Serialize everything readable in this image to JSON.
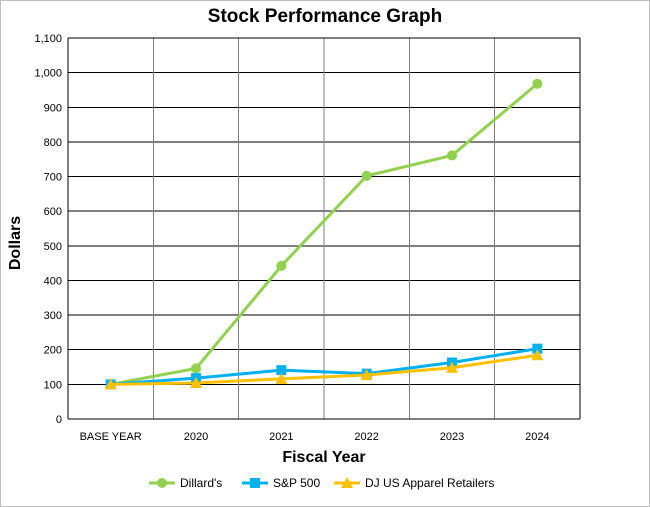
{
  "chart_data": {
    "type": "line",
    "title": "Stock Performance Graph",
    "xlabel": "Fiscal Year",
    "ylabel": "Dollars",
    "categories": [
      "BASE YEAR",
      "2020",
      "2021",
      "2022",
      "2023",
      "2024"
    ],
    "ylim": [
      0,
      1100
    ],
    "yticks": [
      0,
      100,
      200,
      300,
      400,
      500,
      600,
      700,
      800,
      900,
      1000,
      1100
    ],
    "ytick_labels": [
      "0",
      "100",
      "200",
      "300",
      "400",
      "500",
      "600",
      "700",
      "800",
      "900",
      "1,000",
      "1,100"
    ],
    "grid": true,
    "legend_position": "bottom",
    "series": [
      {
        "name": "Dillard's",
        "color": "#92d050",
        "marker": "circle",
        "values": [
          100,
          146,
          442,
          702,
          761,
          968
        ]
      },
      {
        "name": "S&P 500",
        "color": "#00b0f0",
        "marker": "square",
        "values": [
          100,
          118,
          141,
          131,
          163,
          203
        ]
      },
      {
        "name": "DJ US Apparel Retailers",
        "color": "#ffc000",
        "marker": "triangle",
        "values": [
          100,
          104,
          116,
          127,
          148,
          184
        ]
      }
    ]
  }
}
